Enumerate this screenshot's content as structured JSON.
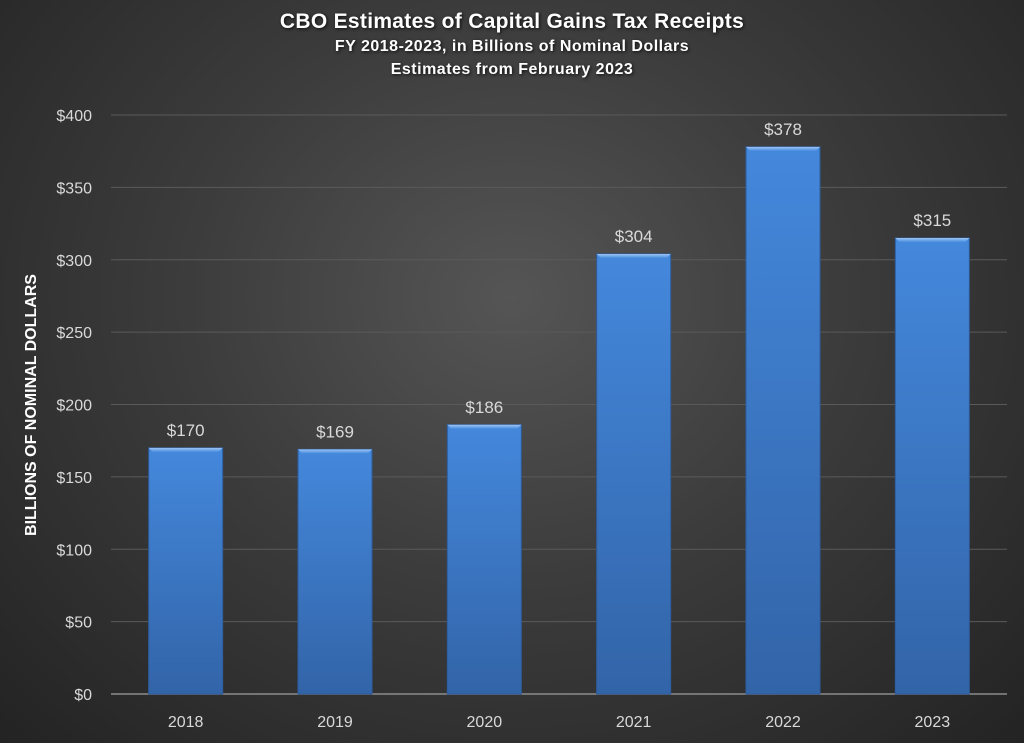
{
  "chart_data": {
    "type": "bar",
    "title": "CBO Estimates of Capital Gains Tax Receipts",
    "subtitle_lines": [
      "FY 2018-2023, in Billions of Nominal Dollars",
      "Estimates from February 2023"
    ],
    "xlabel": "",
    "ylabel": "BILLIONS OF NOMINAL DOLLARS",
    "categories": [
      "2018",
      "2019",
      "2020",
      "2021",
      "2022",
      "2023"
    ],
    "values": [
      170,
      169,
      186,
      304,
      378,
      315
    ],
    "data_labels": [
      "$170",
      "$169",
      "$186",
      "$304",
      "$378",
      "$315"
    ],
    "ylim": [
      0,
      400
    ],
    "yticks": [
      0,
      50,
      100,
      150,
      200,
      250,
      300,
      350,
      400
    ],
    "ytick_labels": [
      "$0",
      "$50",
      "$100",
      "$150",
      "$200",
      "$250",
      "$300",
      "$350",
      "$400"
    ],
    "grid": true,
    "legend": "none",
    "bar_color": "#3f7fd2"
  }
}
